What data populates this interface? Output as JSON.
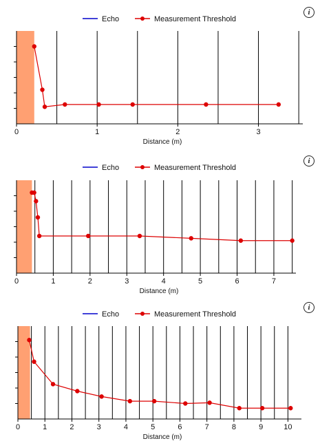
{
  "info_icon": "info-icon",
  "colors": {
    "echo": "#0000cc",
    "threshold": "#dd0000",
    "shade": "#ffa072",
    "grid": "#000000"
  },
  "chart_data": [
    {
      "type": "line",
      "legend": [
        "Echo",
        "Measurement Threshold"
      ],
      "legend_placement": "top-center",
      "xlabel": "Distance (m)",
      "xlim": [
        0,
        3.55
      ],
      "xticks": [
        0,
        1,
        2,
        3
      ],
      "xtick_labels": [
        "0",
        "1",
        "2",
        "3"
      ],
      "grid_x": [
        0.5,
        1.0,
        1.5,
        2.0,
        2.5,
        3.0,
        3.5
      ],
      "ylim": [
        0,
        6
      ],
      "yticks": [
        1,
        2,
        3,
        4,
        5
      ],
      "shaded_region": [
        0,
        0.22
      ],
      "series": [
        {
          "name": "Echo",
          "x": [],
          "y": []
        },
        {
          "name": "Measurement Threshold",
          "x": [
            0.22,
            0.32,
            0.35,
            0.6,
            1.02,
            1.44,
            2.35,
            3.25
          ],
          "y": [
            5.0,
            2.2,
            1.1,
            1.25,
            1.25,
            1.25,
            1.25,
            1.25
          ]
        }
      ]
    },
    {
      "type": "line",
      "legend": [
        "Echo",
        "Measurement Threshold"
      ],
      "legend_placement": "top-center",
      "xlabel": "Distance (m)",
      "xlim": [
        0,
        7.6
      ],
      "xticks": [
        0,
        1,
        2,
        3,
        4,
        5,
        6,
        7
      ],
      "xtick_labels": [
        "0",
        "1",
        "2",
        "3",
        "4",
        "5",
        "6",
        "7"
      ],
      "grid_x": [
        0.5,
        1.0,
        1.5,
        2.0,
        2.5,
        3.0,
        3.5,
        4.0,
        4.5,
        5.0,
        5.5,
        6.0,
        6.5,
        7.0,
        7.5
      ],
      "ylim": [
        0,
        6
      ],
      "yticks": [
        1,
        2,
        3,
        4,
        5
      ],
      "shaded_region": [
        0,
        0.42
      ],
      "series": [
        {
          "name": "Echo",
          "x": [],
          "y": []
        },
        {
          "name": "Measurement Threshold",
          "x": [
            0.42,
            0.48,
            0.53,
            0.58,
            0.62,
            1.95,
            3.35,
            4.75,
            6.1,
            7.5
          ],
          "y": [
            5.2,
            5.2,
            4.65,
            3.6,
            2.4,
            2.4,
            2.4,
            2.25,
            2.1,
            2.1
          ]
        }
      ]
    },
    {
      "type": "line",
      "legend": [
        "Echo",
        "Measurement Threshold"
      ],
      "legend_placement": "top-center",
      "xlabel": "Distance (m)",
      "xlim": [
        0,
        10.5
      ],
      "xticks": [
        0,
        1,
        2,
        3,
        4,
        5,
        6,
        7,
        8,
        9,
        10
      ],
      "xtick_labels": [
        "0",
        "1",
        "2",
        "3",
        "4",
        "5",
        "6",
        "7",
        "8",
        "9",
        "10"
      ],
      "grid_x": [
        0.5,
        1.0,
        1.5,
        2.0,
        2.5,
        3.0,
        3.5,
        4.0,
        4.5,
        5.0,
        5.5,
        6.0,
        6.5,
        7.0,
        7.5,
        8.0,
        8.5,
        9.0,
        9.5,
        10.0
      ],
      "ylim": [
        0,
        6
      ],
      "yticks": [
        1,
        2,
        3,
        4,
        5
      ],
      "shaded_region": [
        0,
        0.45
      ],
      "series": [
        {
          "name": "Echo",
          "x": [],
          "y": []
        },
        {
          "name": "Measurement Threshold",
          "x": [
            0.42,
            0.6,
            1.3,
            2.2,
            3.1,
            4.15,
            5.05,
            6.2,
            7.1,
            8.2,
            9.05,
            10.1
          ],
          "y": [
            5.1,
            3.7,
            2.25,
            1.8,
            1.45,
            1.15,
            1.15,
            1.0,
            1.05,
            0.7,
            0.7,
            0.7
          ]
        }
      ]
    }
  ]
}
